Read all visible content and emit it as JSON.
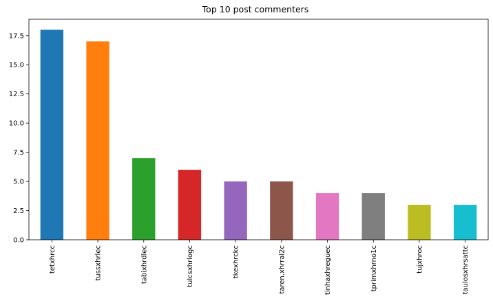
{
  "chart_data": {
    "type": "bar",
    "title": "Top 10 post commenters",
    "xlabel": "",
    "ylabel": "",
    "categories": [
      "tetxhrcc",
      "tussxhrlec",
      "tabixhrdlec",
      "tulcsxhrlogc",
      "tkexhrckc",
      "taren.xhrral2c",
      "tinhaxhreguec",
      "tprimxhrno1c",
      "tujxhroc",
      "taulosxhrsattc"
    ],
    "values": [
      18,
      17,
      7,
      6,
      5,
      5,
      4,
      4,
      3,
      3
    ],
    "colors": [
      "#1f77b4",
      "#ff7f0e",
      "#2ca02c",
      "#d62728",
      "#9467bd",
      "#8c564b",
      "#e377c2",
      "#7f7f7f",
      "#bcbd22",
      "#17becf"
    ],
    "ylim": [
      0,
      18.9
    ],
    "yticks": [
      "0.0",
      "2.5",
      "5.0",
      "7.5",
      "10.0",
      "12.5",
      "15.0",
      "17.5"
    ],
    "grid": false,
    "legend": "none"
  }
}
